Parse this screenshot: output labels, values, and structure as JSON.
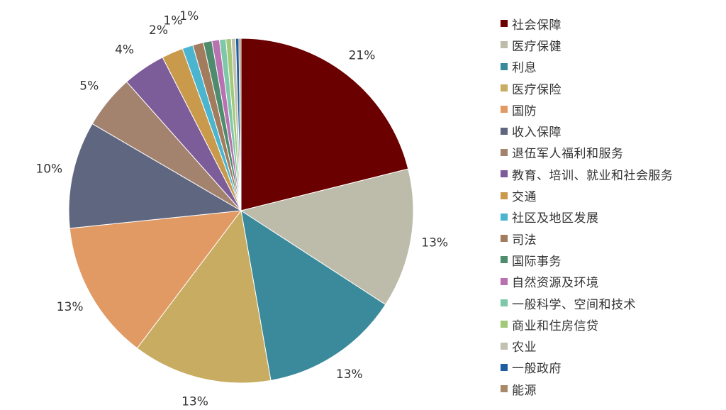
{
  "chart_data": {
    "type": "pie",
    "slices": [
      {
        "label": "社会保障",
        "value": 21,
        "display": "21%",
        "color": "#6b0000"
      },
      {
        "label": "医疗保健",
        "value": 13,
        "display": "13%",
        "color": "#bdbbaa"
      },
      {
        "label": "利息",
        "value": 13,
        "display": "13%",
        "color": "#3b8a9b"
      },
      {
        "label": "医疗保险",
        "value": 13,
        "display": "13%",
        "color": "#c7ac62"
      },
      {
        "label": "国防",
        "value": 13,
        "display": "13%",
        "color": "#e19a63"
      },
      {
        "label": "收入保障",
        "value": 10,
        "display": "10%",
        "color": "#5f6680"
      },
      {
        "label": "退伍军人福利和服务",
        "value": 5,
        "display": "5%",
        "color": "#a3836e"
      },
      {
        "label": "教育、培训、就业和社会服务",
        "value": 4,
        "display": "4%",
        "color": "#7c5c99"
      },
      {
        "label": "交通",
        "value": 2,
        "display": "2%",
        "color": "#c99a4b"
      },
      {
        "label": "社区及地区发展",
        "value": 1,
        "display": "1%",
        "color": "#4bb5cf"
      },
      {
        "label": "司法",
        "value": 1,
        "display": "1%",
        "color": "#a37c5e"
      },
      {
        "label": "国际事务",
        "value": 0.8,
        "display": "",
        "color": "#4f8c6e"
      },
      {
        "label": "自然资源及环境",
        "value": 0.7,
        "display": "",
        "color": "#b971b2"
      },
      {
        "label": "一般科学、空间和技术",
        "value": 0.6,
        "display": "",
        "color": "#7fc7a9"
      },
      {
        "label": "商业和住房信贷",
        "value": 0.5,
        "display": "",
        "color": "#a2c87a"
      },
      {
        "label": "农业",
        "value": 0.4,
        "display": "",
        "color": "#c2c0b0"
      },
      {
        "label": "一般政府",
        "value": 0.3,
        "display": "",
        "color": "#1c5e9e"
      },
      {
        "label": "能源",
        "value": 0.2,
        "display": "",
        "color": "#a8896a"
      }
    ]
  }
}
